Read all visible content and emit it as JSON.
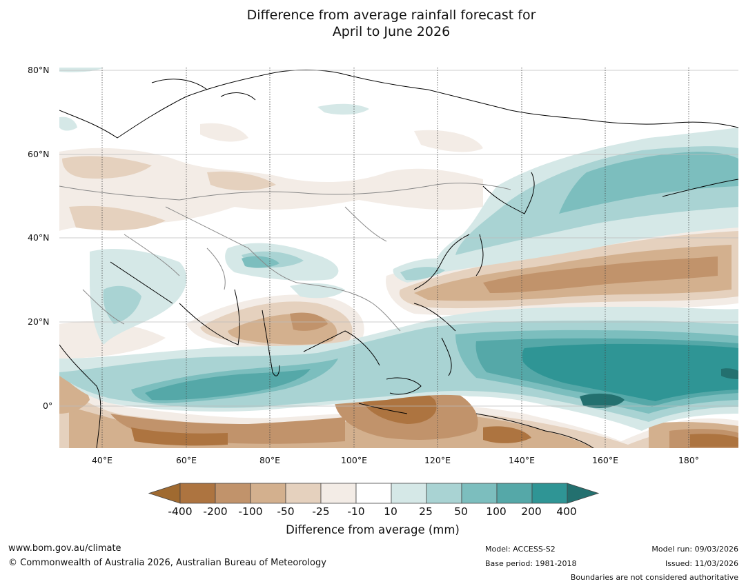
{
  "title": {
    "line1": "Difference from average rainfall forecast for",
    "line2": "April to June 2026"
  },
  "map": {
    "region": "Asia and Western Pacific",
    "latitude_labels": [
      "80°N",
      "60°N",
      "40°N",
      "20°N",
      "0°"
    ],
    "longitude_labels": [
      "40°E",
      "60°E",
      "80°E",
      "100°E",
      "120°E",
      "140°E",
      "160°E",
      "180°"
    ]
  },
  "colorbar": {
    "title": "Difference from average (mm)",
    "tick_labels": [
      "-400",
      "-200",
      "-100",
      "-50",
      "-25",
      "-10",
      "10",
      "25",
      "50",
      "100",
      "200",
      "400"
    ],
    "colors": [
      "#a06a30",
      "#ad7440",
      "#c1936b",
      "#d3b08e",
      "#e5d1be",
      "#f3ece6",
      "#ffffff",
      "#d5e8e7",
      "#a9d3d3",
      "#7cbebe",
      "#55a8a8",
      "#2f9595",
      "#23706f"
    ]
  },
  "footer": {
    "url": "www.bom.gov.au/climate",
    "copyright": "© Commonwealth of Australia 2026, Australian Bureau of Meteorology",
    "model": "Model: ACCESS-S2",
    "base_period": "Base period: 1981-2018",
    "model_run": "Model run: 09/03/2026",
    "issued": "Issued: 11/03/2026",
    "boundaries_note": "Boundaries are not considered authoritative"
  }
}
